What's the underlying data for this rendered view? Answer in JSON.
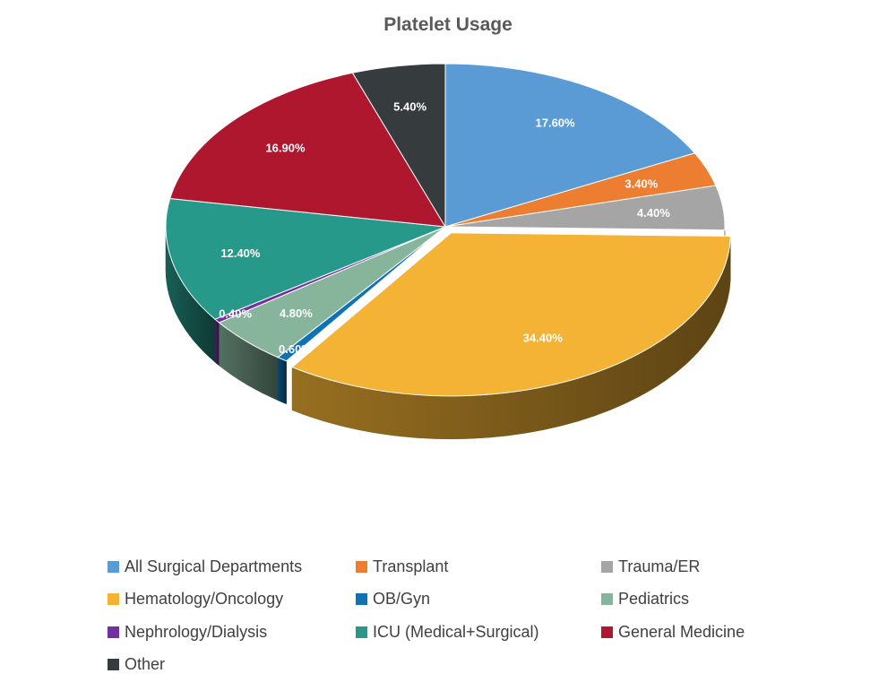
{
  "chart_data": {
    "type": "pie",
    "title": "Platelet Usage",
    "slices": [
      {
        "name": "All Surgical Departments",
        "value": 17.6,
        "label": "17.60%",
        "color": "#5b9bd5"
      },
      {
        "name": "Transplant",
        "value": 3.4,
        "label": "3.40%",
        "color": "#ed7d31"
      },
      {
        "name": "Trauma/ER",
        "value": 4.4,
        "label": "4.40%",
        "color": "#a5a5a5"
      },
      {
        "name": "Hematology/Oncology",
        "value": 34.4,
        "label": "34.40%",
        "color": "#f4b334"
      },
      {
        "name": "OB/Gyn",
        "value": 0.6,
        "label": "0.60%",
        "color": "#0e72b5"
      },
      {
        "name": "Pediatrics",
        "value": 4.8,
        "label": "4.80%",
        "color": "#86b59c"
      },
      {
        "name": "Nephrology/Dialysis",
        "value": 0.4,
        "label": "0.40%",
        "color": "#7030a0"
      },
      {
        "name": "ICU (Medical+Surgical)",
        "value": 12.4,
        "label": "12.40%",
        "color": "#26998a"
      },
      {
        "name": "General Medicine",
        "value": 16.9,
        "label": "16.90%",
        "color": "#ae172d"
      },
      {
        "name": "Other",
        "value": 5.4,
        "label": "5.40%",
        "color": "#363b3e"
      }
    ],
    "legend_position": "bottom",
    "style": "3d-exploded-pie"
  }
}
